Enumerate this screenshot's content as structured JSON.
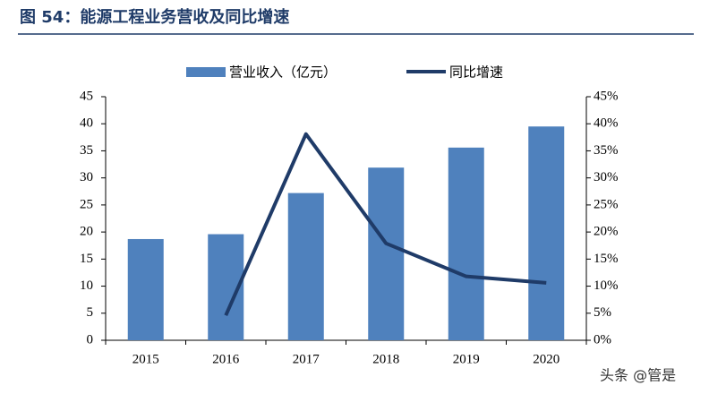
{
  "chart_data": {
    "type": "bar-line",
    "title": "图 54：能源工程业务营收及同比增速",
    "categories": [
      "2015",
      "2016",
      "2017",
      "2018",
      "2019",
      "2020"
    ],
    "series": [
      {
        "name": "营业收入（亿元）",
        "type": "bar",
        "color": "#4f81bd",
        "values": [
          18.7,
          19.6,
          27.2,
          31.9,
          35.6,
          39.5
        ]
      },
      {
        "name": "同比增速",
        "type": "line",
        "axis": "y2",
        "color": "#1f3b68",
        "values": [
          null,
          4.6,
          38.1,
          17.9,
          11.8,
          10.6
        ]
      }
    ],
    "ylim": [
      0,
      45
    ],
    "yticks": [
      0,
      5,
      10,
      15,
      20,
      25,
      30,
      35,
      40,
      45
    ],
    "y2lim": [
      0,
      45
    ],
    "y2ticks": [
      {
        "value": 0,
        "label": "0%"
      },
      {
        "value": 5,
        "label": "5%"
      },
      {
        "value": 10,
        "label": "10%"
      },
      {
        "value": 15,
        "label": "15%"
      },
      {
        "value": 20,
        "label": "20%"
      },
      {
        "value": 25,
        "label": "25%"
      },
      {
        "value": 30,
        "label": "30%"
      },
      {
        "value": 35,
        "label": "35%"
      },
      {
        "value": 40,
        "label": "40%"
      },
      {
        "value": 45,
        "label": "45%"
      }
    ],
    "legend": "top",
    "grid": false
  },
  "watermark": "头条 @管是"
}
